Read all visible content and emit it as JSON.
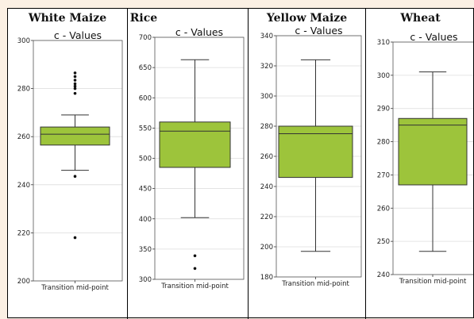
{
  "colors": {
    "box": "#9dc43b",
    "grid": "#dcdcdc",
    "line": "#333333"
  },
  "chart_data": [
    {
      "type": "box",
      "panel_title": "White Maize",
      "title": "c - Values",
      "category": "Transition mid-point",
      "ylim": [
        200,
        300
      ],
      "yticks": [
        200,
        220,
        240,
        260,
        280,
        300
      ],
      "box": {
        "whisker_low": 246,
        "q1": 256.5,
        "median": 261,
        "q3": 264,
        "whisker_high": 269
      },
      "outliers": [
        286.5,
        285,
        283.5,
        282,
        281,
        280,
        278,
        243.5,
        218
      ]
    },
    {
      "type": "box",
      "panel_title": "Rice",
      "title": "c - Values",
      "category": "Transition mid-point",
      "ylim": [
        300,
        700
      ],
      "yticks": [
        300,
        350,
        400,
        450,
        500,
        550,
        600,
        650,
        700
      ],
      "box": {
        "whisker_low": 402,
        "q1": 485,
        "median": 545,
        "q3": 560,
        "whisker_high": 663
      },
      "outliers": [
        339,
        318
      ]
    },
    {
      "type": "box",
      "panel_title": "Yellow Maize",
      "title": "c - Values",
      "category": "Transition mid-point",
      "ylim": [
        180,
        340
      ],
      "yticks": [
        180,
        200,
        220,
        240,
        260,
        280,
        300,
        320,
        340
      ],
      "box": {
        "whisker_low": 197,
        "q1": 246,
        "median": 275,
        "q3": 280,
        "whisker_high": 324
      },
      "outliers": []
    },
    {
      "type": "box",
      "panel_title": "Wheat",
      "title": "c - Values",
      "category": "Transition mid-point",
      "ylim": [
        240,
        310
      ],
      "yticks": [
        240,
        250,
        260,
        270,
        280,
        290,
        300,
        310
      ],
      "box": {
        "whisker_low": 247,
        "q1": 267,
        "median": 285,
        "q3": 287,
        "whisker_high": 301
      },
      "outliers": []
    }
  ]
}
